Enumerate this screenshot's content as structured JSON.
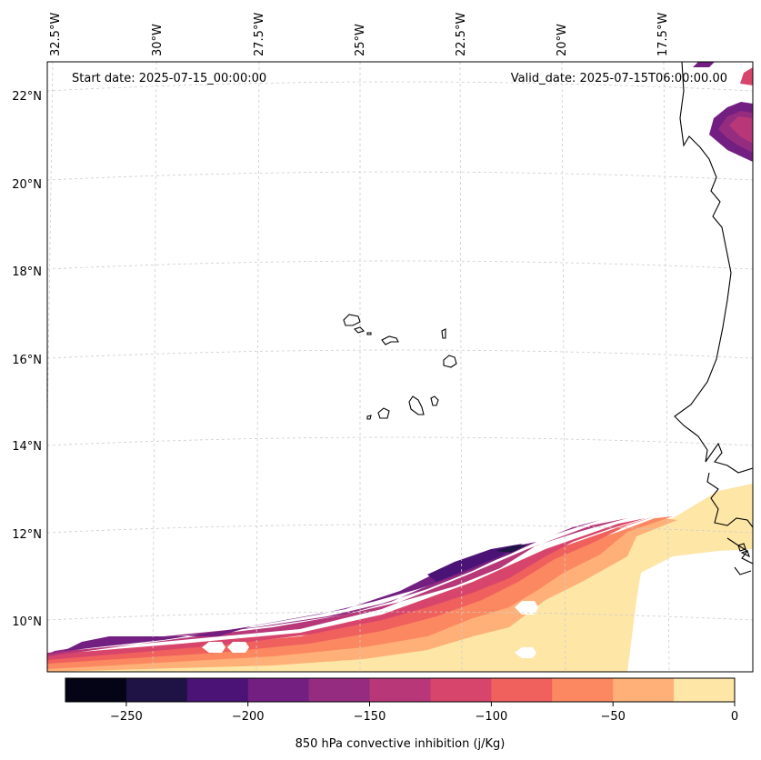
{
  "annotations": {
    "start_date": "Start date: 2025-07-15_00:00:00",
    "valid_date": "Valid_date: 2025-07-15T06:00:00.00"
  },
  "longitude_labels": [
    "32.5°W",
    "30°W",
    "27.5°W",
    "25°W",
    "22.5°W",
    "20°W",
    "17.5°W"
  ],
  "latitude_labels": [
    "22°N",
    "20°N",
    "18°N",
    "16°N",
    "14°N",
    "12°N",
    "10°N"
  ],
  "colorbar": {
    "label": "850 hPa convective inhibition (j/Kg)",
    "tick_labels": [
      "−250",
      "−200",
      "−150",
      "−100",
      "−50",
      "0"
    ],
    "bounds": [
      -275,
      -250,
      -225,
      -200,
      -175,
      -150,
      -125,
      -100,
      -75,
      -50,
      -25,
      0
    ],
    "colors": [
      "#050416",
      "#1f1245",
      "#4c1376",
      "#721f81",
      "#952c80",
      "#b73779",
      "#d8456c",
      "#f0605d",
      "#fb8861",
      "#feb078",
      "#fde6a6"
    ]
  },
  "map": {
    "projection": "conic",
    "gridlines": "dashed light grey",
    "coastlines": "black",
    "extent": {
      "lon": [
        -32.8,
        -15.2
      ],
      "lat": [
        8.9,
        22.8
      ]
    }
  }
}
